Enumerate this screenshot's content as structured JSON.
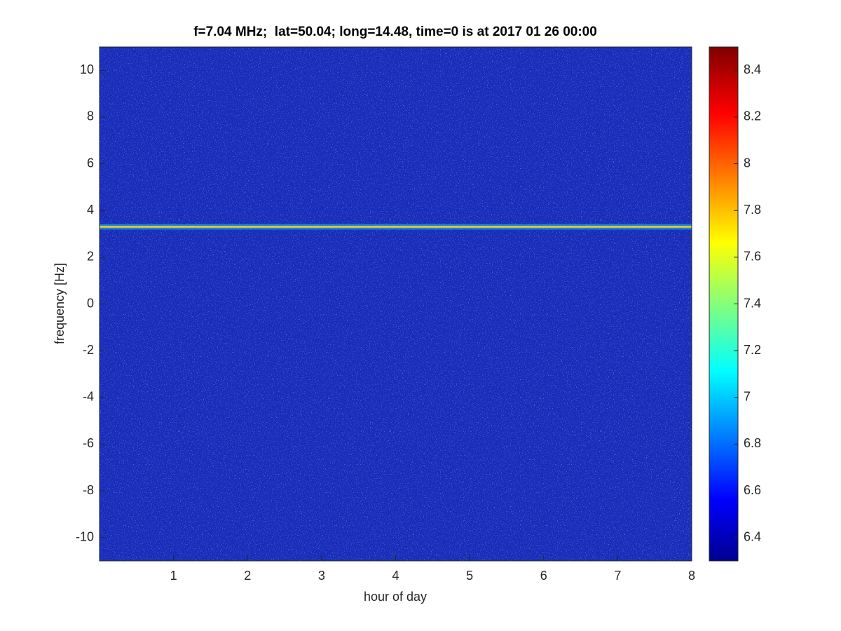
{
  "chart_data": {
    "type": "spectrogram",
    "title": "f=7.04 MHz;  lat=50.04; long=14.48, time=0 is at 2017 01 26 00:00",
    "x_label": "hour of day",
    "y_label": "frequency [Hz]",
    "xlim": [
      0,
      8
    ],
    "xticks": [
      1,
      2,
      3,
      4,
      5,
      6,
      7,
      8
    ],
    "ylim": [
      -11,
      11
    ],
    "yticks": [
      -10,
      -8,
      -6,
      -4,
      -2,
      0,
      2,
      4,
      6,
      8,
      10
    ],
    "background_color": "#1a2bb8",
    "lines": [
      {
        "y": 3.3,
        "color": "#f5d020"
      }
    ],
    "colorbar": {
      "clim": [
        6.3,
        8.5
      ],
      "ticks": [
        6.4,
        6.6,
        6.8,
        7,
        7.2,
        7.4,
        7.6,
        7.8,
        8,
        8.2,
        8.4
      ]
    }
  }
}
